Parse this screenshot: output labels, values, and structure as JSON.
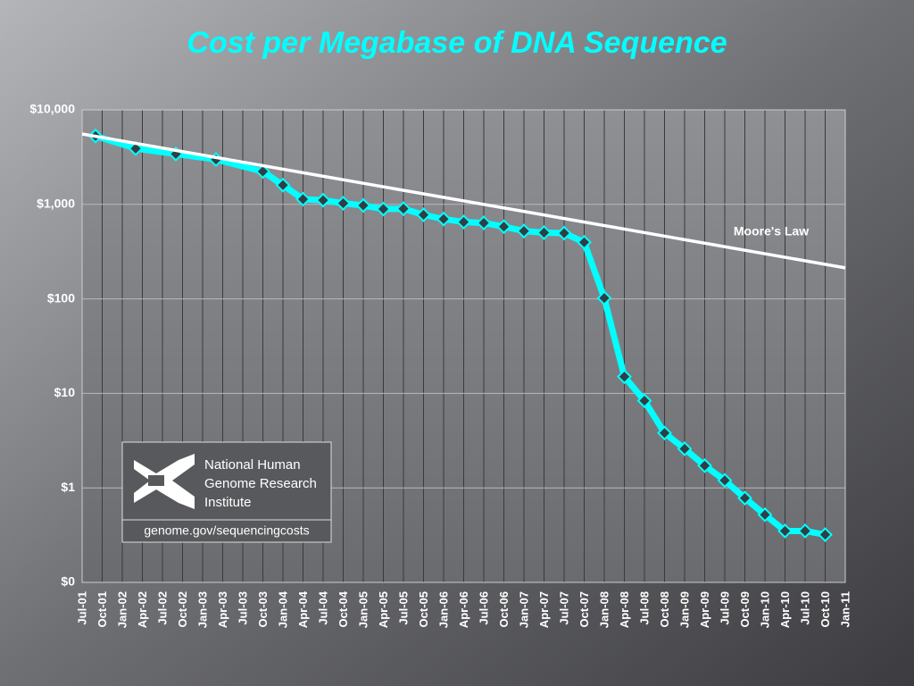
{
  "chart_data": {
    "type": "line",
    "title": "Cost per Megabase of DNA Sequence",
    "categories": [
      "Jul-01",
      "Oct-01",
      "Jan-02",
      "Apr-02",
      "Jul-02",
      "Oct-02",
      "Jan-03",
      "Apr-03",
      "Jul-03",
      "Oct-03",
      "Jan-04",
      "Apr-04",
      "Jul-04",
      "Oct-04",
      "Jan-05",
      "Apr-05",
      "Jul-05",
      "Oct-05",
      "Jan-06",
      "Apr-06",
      "Jul-06",
      "Oct-06",
      "Jan-07",
      "Apr-07",
      "Jul-07",
      "Oct-07",
      "Jan-08",
      "Apr-08",
      "Jul-08",
      "Oct-08",
      "Jan-09",
      "Apr-09",
      "Jul-09",
      "Oct-09",
      "Jan-10",
      "Apr-10",
      "Jul-10",
      "Oct-10",
      "Jan-11"
    ],
    "series": [
      {
        "color": "#00ffff",
        "x": [
          "Sep-01",
          "Mar-02",
          "Sep-02",
          "Mar-03",
          "Oct-03",
          "Jan-04",
          "Apr-04",
          "Jul-04",
          "Oct-04",
          "Jan-05",
          "Apr-05",
          "Jul-05",
          "Oct-05",
          "Jan-06",
          "Apr-06",
          "Jul-06",
          "Oct-06",
          "Jan-07",
          "Apr-07",
          "Jul-07",
          "Oct-07",
          "Jan-08",
          "Apr-08",
          "Jul-08",
          "Oct-08",
          "Jan-09",
          "Apr-09",
          "Jul-09",
          "Oct-09",
          "Jan-10",
          "Apr-10",
          "Jul-10",
          "Oct-10"
        ],
        "values": [
          5292,
          3898,
          3413,
          2986,
          2230,
          1598,
          1135,
          1107,
          1028,
          974,
          893,
          899,
          775,
          699,
          651,
          636,
          581,
          522,
          502,
          496,
          397,
          102,
          15.03,
          8.36,
          3.81,
          2.59,
          1.72,
          1.2,
          0.78,
          0.52,
          0.35,
          0.35,
          0.32
        ]
      },
      {
        "name": "Moore's Law",
        "color": "#ffffff",
        "x": [
          "Jul-01",
          "Jan-11"
        ],
        "values": [
          5560,
          213
        ]
      }
    ],
    "ylim": [
      0.1,
      10000
    ],
    "log_y": true,
    "grid": true,
    "yticks": [
      {
        "value": 0.1,
        "label": "$0"
      },
      {
        "value": 1,
        "label": "$1"
      },
      {
        "value": 10,
        "label": "$10"
      },
      {
        "value": 100,
        "label": "$100"
      },
      {
        "value": 1000,
        "label": "$1,000"
      },
      {
        "value": 10000,
        "label": "$10,000"
      }
    ],
    "logo": {
      "lines": [
        "National Human",
        "Genome Research",
        "Institute"
      ],
      "url": "genome.gov/sequencingcosts"
    }
  }
}
